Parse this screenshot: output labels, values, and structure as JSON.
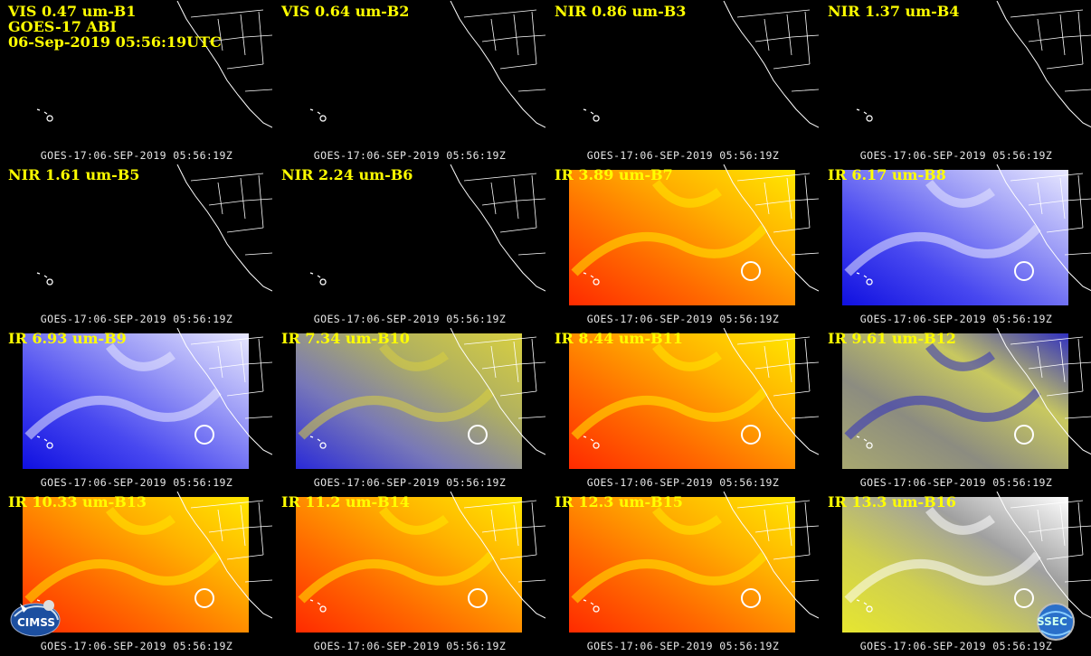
{
  "header": {
    "satellite": "GOES-17 ABI",
    "datetime": "06-Sep-2019 05:56:19UTC"
  },
  "timestamp": "GOES-17:06-SEP-2019 05:56:19Z",
  "panels": [
    {
      "label": "VIS 0.47 um-B1",
      "palette": "black"
    },
    {
      "label": "VIS 0.64 um-B2",
      "palette": "black"
    },
    {
      "label": "NIR 0.86 um-B3",
      "palette": "black"
    },
    {
      "label": "NIR 1.37 um-B4",
      "palette": "black"
    },
    {
      "label": "NIR 1.61 um-B5",
      "palette": "black"
    },
    {
      "label": "NIR 2.24 um-B6",
      "palette": "black"
    },
    {
      "label": "IR 3.89 um-B7",
      "palette": "red-yellow"
    },
    {
      "label": "IR 6.17 um-B8",
      "palette": "blue-white"
    },
    {
      "label": "IR 6.93 um-B9",
      "palette": "blue-white"
    },
    {
      "label": "IR 7.34 um-B10",
      "palette": "blue-olive"
    },
    {
      "label": "IR 8.44 um-B11",
      "palette": "red-yellow"
    },
    {
      "label": "IR 9.61 um-B12",
      "palette": "olive-gray"
    },
    {
      "label": "IR 10.33 um-B13",
      "palette": "red-yellow"
    },
    {
      "label": "IR 11.2 um-B14",
      "palette": "red-yellow"
    },
    {
      "label": "IR 12.3 um-B15",
      "palette": "red-yellow"
    },
    {
      "label": "IR 13.3 um-B16",
      "palette": "yellow"
    }
  ],
  "logos": {
    "left": "CIMSS",
    "right": "SSEC"
  },
  "colors": {
    "label": "#ffff00",
    "coast": "#ffffff",
    "background": "#000000"
  }
}
